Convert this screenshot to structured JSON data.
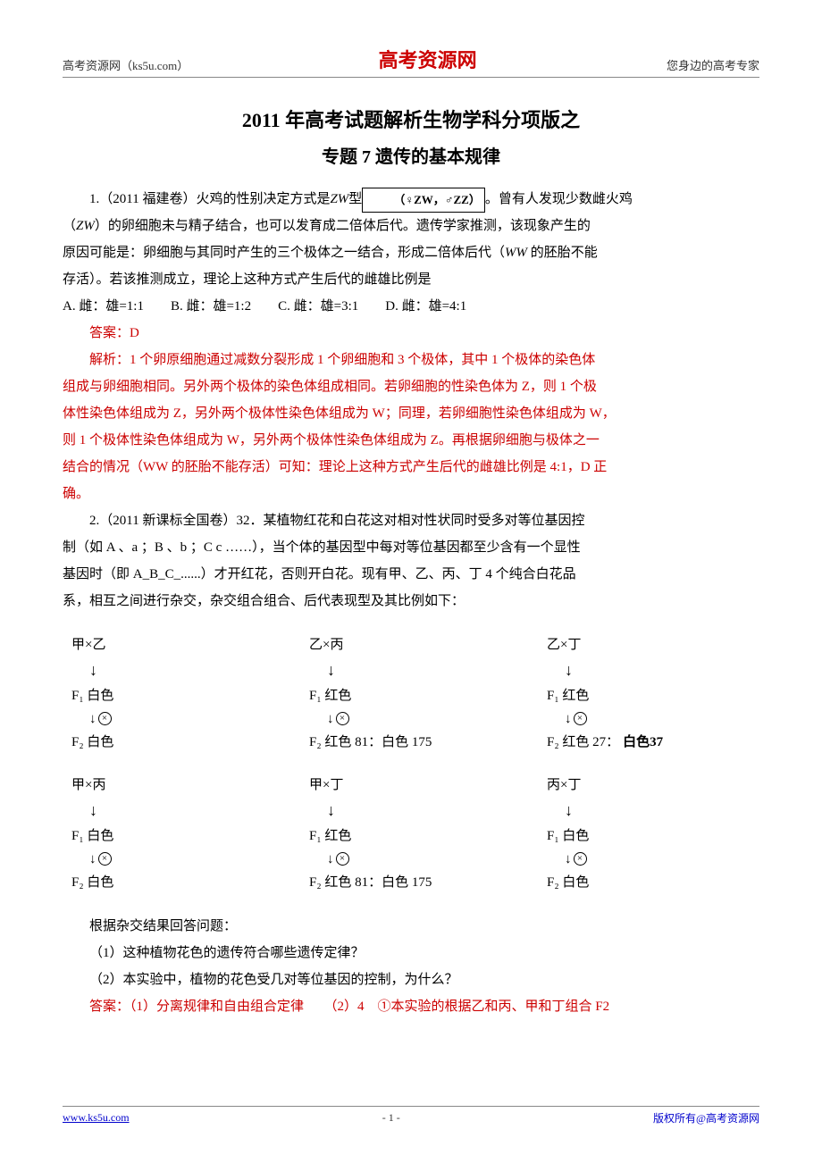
{
  "header": {
    "left": "高考资源网（ks5u.com）",
    "center": "高考资源网",
    "right": "您身边的高考专家"
  },
  "title1": "2011 年高考试题解析生物学科分项版之",
  "title2": "专题 7 遗传的基本规律",
  "q1": {
    "lead1": "1.（2011 福建卷）火鸡的性别决定方式是",
    "zw1": "ZW",
    "lead2": "型",
    "inline_img": "（♀ZW，♂ZZ）",
    "lead3": "。曾有人发现少数雌火鸡",
    "p2a": "（",
    "zw2": "ZW",
    "p2b": "）的卵细胞未与精子结合，也可以发育成二倍体后代。遗传学家推测，该现象产生的",
    "p3a": "原因可能是：卵细胞与其同时产生的三个极体之一结合，形成二倍体后代（",
    "ww": "WW",
    "p3b": " 的胚胎不能",
    "p4": "存活）。若该推测成立，理论上这种方式产生后代的雌雄比例是",
    "options": {
      "A": "A. 雌：雄=1:1",
      "B": "B. 雌：雄=1:2",
      "C": "C. 雌：雄=3:1",
      "D": "D. 雌：雄=4:1"
    },
    "answer": "答案：D",
    "analysis": {
      "l1": "解析：1 个卵原细胞通过减数分裂形成 1 个卵细胞和 3 个极体，其中 1 个极体的染色体",
      "l2": "组成与卵细胞相同。另外两个极体的染色体组成相同。若卵细胞的性染色体为 Z，则 1 个极",
      "l3": "体性染色体组成为 Z，另外两个极体性染色体组成为 W；同理，若卵细胞性染色体组成为 W，",
      "l4": "则 1 个极体性染色体组成为 W，另外两个极体性染色体组成为 Z。再根据卵细胞与极体之一",
      "l5": "结合的情况（WW 的胚胎不能存活）可知：理论上这种方式产生后代的雌雄比例是 4:1，D 正",
      "l6": "确。"
    }
  },
  "q2": {
    "lead": "2.（2011 新课标全国卷）32．某植物红花和白花这对相对性状同时受多对等位基因控",
    "p2": "制（如 A 、a ；B 、b ；C c ……），当个体的基因型中每对等位基因都至少含有一个显性",
    "p3": "基因时（即 A_B_C_......）才开红花，否则开白花。现有甲、乙、丙、丁 4 个纯合白花品",
    "p4": "系，相互之间进行杂交，杂交组合组合、后代表现型及其比例如下："
  },
  "crosses": {
    "row1": [
      {
        "p": "甲×乙",
        "f1": "F₁ 白色",
        "f2": "F₂ 白色"
      },
      {
        "p": "乙×丙",
        "f1": "F₁ 红色",
        "f2": "F₂ 红色 81：白色 175"
      },
      {
        "p": "乙×丁",
        "f1": "F₁ 红色",
        "f2_a": "F₂ 红色 27：",
        "f2_b": "白色37"
      }
    ],
    "row2": [
      {
        "p": "甲×丙",
        "f1": "F₁ 白色",
        "f2": "F₂ 白色"
      },
      {
        "p": "甲×丁",
        "f1": "F₁ 红色",
        "f2": "F₂ 红色 81：白色 175"
      },
      {
        "p": "丙×丁",
        "f1": "F₁ 白色",
        "f2": "F₂ 白色"
      }
    ]
  },
  "q2b": {
    "intro": "根据杂交结果回答问题：",
    "sub1": "（1）这种植物花色的遗传符合哪些遗传定律？",
    "sub2": "（2）本实验中，植物的花色受几对等位基因的控制，为什么？",
    "ans": "答案：（1）分离规律和自由组合定律　　（2）4　①本实验的根据乙和丙、甲和丁组合 F2"
  },
  "footer": {
    "left": "www.ks5u.com",
    "center": "- 1 -",
    "right": "版权所有@高考资源网"
  },
  "colors": {
    "red": "#cc0000",
    "blue": "#0000cc",
    "text": "#000000",
    "border": "#888888",
    "bg": "#ffffff"
  }
}
